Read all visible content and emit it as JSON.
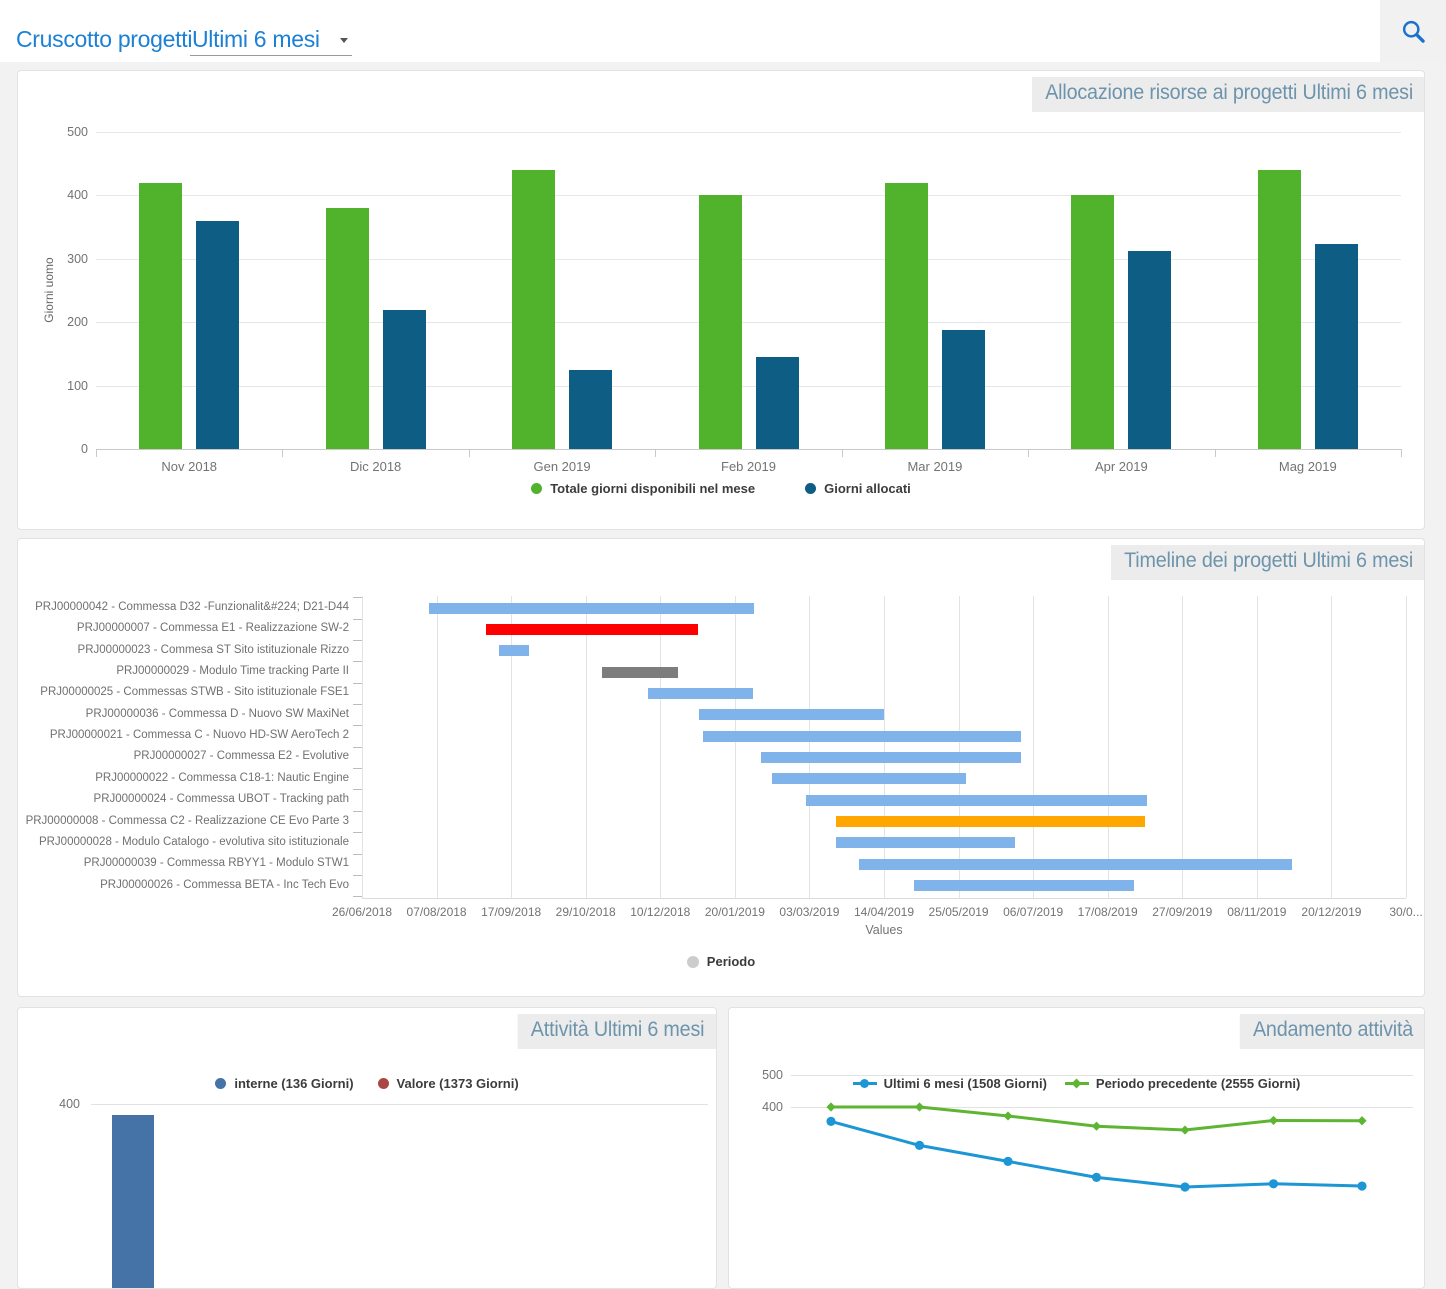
{
  "header": {
    "title": "Cruscotto progetti",
    "period_dropdown": {
      "value": "Ultimi 6 mesi"
    }
  },
  "chart_data": [
    {
      "id": "allocazione",
      "type": "bar",
      "title": "Allocazione risorse ai progetti Ultimi 6 mesi",
      "ylabel": "Giorni uomo",
      "ylim": [
        0,
        500
      ],
      "yticks": [
        500,
        400,
        300,
        200,
        100,
        0
      ],
      "grid": true,
      "legend_position": "bottom",
      "categories": [
        "Nov 2018",
        "Dic 2018",
        "Gen 2019",
        "Feb 2019",
        "Mar 2019",
        "Apr 2019",
        "Mag 2019"
      ],
      "series": [
        {
          "name": "Totale giorni disponibili nel mese",
          "color": "#51b22c",
          "values": [
            420,
            380,
            440,
            400,
            420,
            400,
            440
          ]
        },
        {
          "name": "Giorni allocati",
          "color": "#0d5d85",
          "values": [
            360,
            220,
            125,
            145,
            187,
            313,
            323
          ]
        }
      ]
    },
    {
      "id": "timeline",
      "type": "gantt",
      "title": "Timeline dei progetti Ultimi 6 mesi",
      "xlabel": "Values",
      "legend": [
        {
          "name": "Periodo",
          "color": "#cccccc"
        }
      ],
      "axis_start": "2018-06-26",
      "tick_interval_days": 42,
      "xticks": [
        "26/06/2018",
        "07/08/2018",
        "17/09/2018",
        "29/10/2018",
        "10/12/2018",
        "20/01/2019",
        "03/03/2019",
        "14/04/2019",
        "25/05/2019",
        "06/07/2019",
        "17/08/2019",
        "27/09/2019",
        "08/11/2019",
        "20/12/2019",
        "30/0..."
      ],
      "projects": [
        {
          "label": "PRJ00000042 - Commessa D32 -Funzionalit&#224; D21-D44",
          "start": "2018-08-03",
          "end": "2019-02-02",
          "color": "#7fb3ea"
        },
        {
          "label": "PRJ00000007 - Commessa E1 - Realizzazione SW-2",
          "start": "2018-09-04",
          "end": "2019-01-01",
          "color": "#ff0000"
        },
        {
          "label": "PRJ00000023 - Commesa ST Sito istituzionale Rizzo",
          "start": "2018-09-11",
          "end": "2018-09-28",
          "color": "#7fb3ea"
        },
        {
          "label": "PRJ00000029 - Modulo Time tracking Parte II",
          "start": "2018-11-08",
          "end": "2018-12-21",
          "color": "#7d7d7d"
        },
        {
          "label": "PRJ00000025 - Commessas STWB - Sito istituzionale FSE1",
          "start": "2018-12-04",
          "end": "2019-02-01",
          "color": "#7fb3ea"
        },
        {
          "label": "PRJ00000036 - Commessa D - Nuovo SW MaxiNet",
          "start": "2019-01-02",
          "end": "2019-04-16",
          "color": "#7fb3ea"
        },
        {
          "label": "PRJ00000021 - Commessa C - Nuovo HD-SW AeroTech 2",
          "start": "2019-01-04",
          "end": "2019-07-02",
          "color": "#7fb3ea"
        },
        {
          "label": "PRJ00000027 - Commessa E2 - Evolutive",
          "start": "2019-02-06",
          "end": "2019-07-02",
          "color": "#7fb3ea"
        },
        {
          "label": "PRJ00000022 - Commessa C18-1: Nautic Engine",
          "start": "2019-02-12",
          "end": "2019-06-01",
          "color": "#7fb3ea"
        },
        {
          "label": "PRJ00000024 - Commessa UBOT - Tracking path",
          "start": "2019-03-03",
          "end": "2019-09-11",
          "color": "#7fb3ea"
        },
        {
          "label": "PRJ00000008 - Commessa C2 - Realizzazione CE Evo Parte 3",
          "start": "2019-03-20",
          "end": "2019-09-10",
          "color": "#ffa600"
        },
        {
          "label": "PRJ00000028 - Modulo Catalogo - evolutiva sito istituzionale",
          "start": "2019-03-20",
          "end": "2019-06-29",
          "color": "#7fb3ea"
        },
        {
          "label": "PRJ00000039 - Commessa RBYY1 - Modulo STW1",
          "start": "2019-04-02",
          "end": "2019-12-02",
          "color": "#7fb3ea"
        },
        {
          "label": "PRJ00000026 - Commessa BETA - Inc Tech Evo",
          "start": "2019-05-03",
          "end": "2019-09-04",
          "color": "#7fb3ea"
        }
      ]
    },
    {
      "id": "attivita",
      "type": "bar",
      "title": "Attività Ultimi 6 mesi",
      "note": "chart partially cut off at bottom edge of screenshot",
      "yticks_visible": [
        400
      ],
      "series": [
        {
          "name": "interne (136 Giorni)",
          "color": "#4572a7",
          "values_visible": [
            365
          ]
        },
        {
          "name": "Valore (1373 Giorni)",
          "color": "#aa4643",
          "values_visible": []
        }
      ]
    },
    {
      "id": "andamento",
      "type": "line",
      "title": "Andamento attività",
      "note": "chart partially cut off at bottom edge of screenshot; values below ~350 estimated",
      "yticks_visible": [
        500,
        400
      ],
      "series": [
        {
          "name": "Ultimi 6 mesi (1508 Giorni)",
          "color": "#1c96d4",
          "marker": "circle",
          "values": [
            355,
            280,
            230,
            180,
            150,
            160,
            153
          ]
        },
        {
          "name": "Periodo precedente (2555 Giorni)",
          "color": "#5db533",
          "marker": "diamond",
          "values": [
            400,
            400,
            372,
            340,
            328,
            358,
            357
          ]
        }
      ]
    }
  ]
}
